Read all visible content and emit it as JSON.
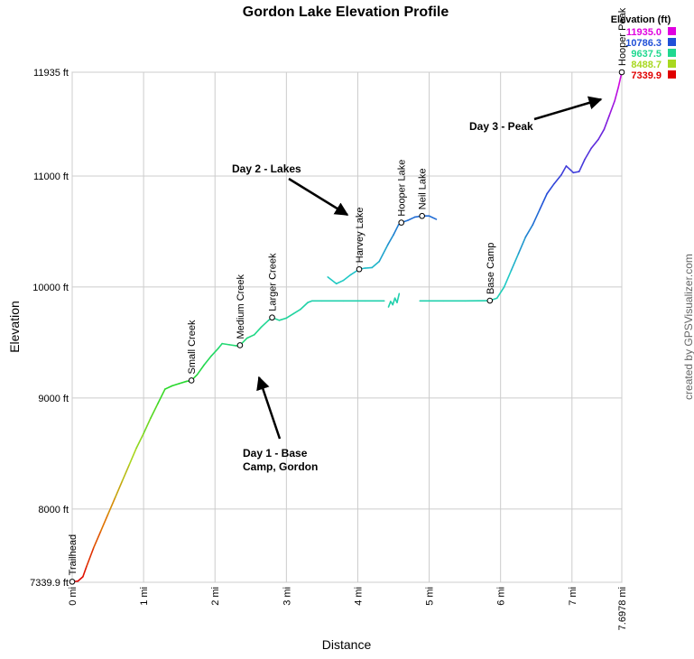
{
  "chart_data": {
    "type": "line",
    "title": "Gordon Lake Elevation Profile",
    "xlabel": "Distance",
    "ylabel": "Elevation",
    "credit": "created by GPSVisualizer.com",
    "xlim": [
      0,
      7.6978
    ],
    "ylim": [
      7339.9,
      11935
    ],
    "x_ticks": [
      {
        "value": 0,
        "label": "0 mi"
      },
      {
        "value": 1,
        "label": "1 mi"
      },
      {
        "value": 2,
        "label": "2 mi"
      },
      {
        "value": 3,
        "label": "3 mi"
      },
      {
        "value": 4,
        "label": "4 mi"
      },
      {
        "value": 5,
        "label": "5 mi"
      },
      {
        "value": 6,
        "label": "6 mi"
      },
      {
        "value": 7,
        "label": "7 mi"
      },
      {
        "value": 7.6978,
        "label": "7.6978 mi"
      }
    ],
    "y_ticks": [
      {
        "value": 7339.9,
        "label": "7339.9 ft"
      },
      {
        "value": 8000,
        "label": "8000 ft"
      },
      {
        "value": 9000,
        "label": "9000 ft"
      },
      {
        "value": 10000,
        "label": "10000 ft"
      },
      {
        "value": 11000,
        "label": "11000 ft"
      },
      {
        "value": 11935,
        "label": "11935 ft"
      }
    ],
    "legend": {
      "title": "Elevation (ft)",
      "placement": "top-right",
      "entries": [
        {
          "label": "11935.0",
          "color": "#e000e0"
        },
        {
          "label": "10786.3",
          "color": "#2050d8"
        },
        {
          "label": "9637.5",
          "color": "#20d890"
        },
        {
          "label": "8488.7",
          "color": "#a8d820"
        },
        {
          "label": "7339.9",
          "color": "#e00000"
        }
      ]
    },
    "series": [
      {
        "segment": 1,
        "points": [
          [
            0.0,
            7345
          ],
          [
            0.08,
            7350
          ],
          [
            0.15,
            7390
          ],
          [
            0.2,
            7480
          ],
          [
            0.3,
            7650
          ],
          [
            0.4,
            7800
          ],
          [
            0.5,
            7950
          ],
          [
            0.6,
            8100
          ],
          [
            0.7,
            8250
          ],
          [
            0.8,
            8400
          ],
          [
            0.9,
            8550
          ],
          [
            1.0,
            8680
          ],
          [
            1.1,
            8820
          ],
          [
            1.2,
            8950
          ],
          [
            1.3,
            9080
          ],
          [
            1.4,
            9110
          ],
          [
            1.5,
            9130
          ],
          [
            1.6,
            9150
          ],
          [
            1.67,
            9158
          ],
          [
            1.75,
            9210
          ],
          [
            1.85,
            9300
          ],
          [
            1.95,
            9380
          ],
          [
            2.05,
            9450
          ],
          [
            2.1,
            9490
          ],
          [
            2.2,
            9480
          ],
          [
            2.3,
            9470
          ],
          [
            2.35,
            9475
          ],
          [
            2.45,
            9540
          ],
          [
            2.55,
            9570
          ],
          [
            2.65,
            9640
          ],
          [
            2.75,
            9700
          ],
          [
            2.8,
            9725
          ],
          [
            2.9,
            9700
          ],
          [
            3.0,
            9720
          ],
          [
            3.1,
            9760
          ],
          [
            3.2,
            9800
          ],
          [
            3.3,
            9860
          ],
          [
            3.36,
            9875
          ],
          [
            3.5,
            9875
          ],
          [
            3.8,
            9875
          ],
          [
            4.1,
            9875
          ],
          [
            4.37,
            9875
          ]
        ]
      },
      {
        "segment": 2,
        "points": [
          [
            4.43,
            9820
          ],
          [
            4.46,
            9870
          ],
          [
            4.49,
            9840
          ],
          [
            4.52,
            9900
          ],
          [
            4.55,
            9860
          ],
          [
            4.58,
            9940
          ]
        ]
      },
      {
        "segment": 3,
        "points": [
          [
            4.87,
            9875
          ],
          [
            5.2,
            9875
          ],
          [
            5.5,
            9875
          ],
          [
            5.85,
            9877
          ],
          [
            5.95,
            9900
          ],
          [
            6.05,
            10000
          ],
          [
            6.15,
            10150
          ],
          [
            6.25,
            10300
          ],
          [
            6.35,
            10450
          ],
          [
            6.45,
            10560
          ],
          [
            6.55,
            10700
          ],
          [
            6.65,
            10840
          ],
          [
            6.75,
            10930
          ],
          [
            6.85,
            11010
          ],
          [
            6.92,
            11090
          ],
          [
            6.97,
            11060
          ],
          [
            7.02,
            11030
          ],
          [
            7.1,
            11040
          ],
          [
            7.18,
            11150
          ],
          [
            7.27,
            11250
          ],
          [
            7.37,
            11330
          ],
          [
            7.45,
            11420
          ],
          [
            7.52,
            11540
          ],
          [
            7.6,
            11680
          ],
          [
            7.65,
            11800
          ],
          [
            7.6978,
            11935
          ]
        ]
      },
      {
        "segment": 4,
        "points": [
          [
            3.58,
            10090
          ],
          [
            3.7,
            10030
          ],
          [
            3.8,
            10060
          ],
          [
            3.9,
            10110
          ],
          [
            4.02,
            10160
          ],
          [
            4.1,
            10170
          ],
          [
            4.2,
            10175
          ],
          [
            4.3,
            10230
          ],
          [
            4.42,
            10380
          ],
          [
            4.5,
            10470
          ],
          [
            4.57,
            10560
          ],
          [
            4.61,
            10580
          ],
          [
            4.7,
            10600
          ],
          [
            4.8,
            10630
          ],
          [
            4.9,
            10640
          ],
          [
            5.0,
            10640
          ],
          [
            5.1,
            10610
          ]
        ]
      }
    ],
    "waypoints": [
      {
        "x": 0.0,
        "y": 7345,
        "label": "Trailhead"
      },
      {
        "x": 1.67,
        "y": 9158,
        "label": "Small Creek"
      },
      {
        "x": 2.35,
        "y": 9475,
        "label": "Medium Creek"
      },
      {
        "x": 2.8,
        "y": 9725,
        "label": "Larger Creek"
      },
      {
        "x": 4.02,
        "y": 10160,
        "label": "Harvey Lake"
      },
      {
        "x": 4.61,
        "y": 10580,
        "label": "Hooper Lake"
      },
      {
        "x": 4.9,
        "y": 10640,
        "label": "Neil Lake"
      },
      {
        "x": 5.85,
        "y": 9877,
        "label": "Base Camp"
      },
      {
        "x": 7.6978,
        "y": 11935,
        "label": "Hooper Peak"
      }
    ],
    "annotations": [
      {
        "lines": [
          "Day 1 - Base",
          "Camp, Gordon"
        ]
      },
      {
        "lines": [
          "Day 2 - Lakes"
        ]
      },
      {
        "lines": [
          "Day 3 - Peak"
        ]
      }
    ]
  }
}
